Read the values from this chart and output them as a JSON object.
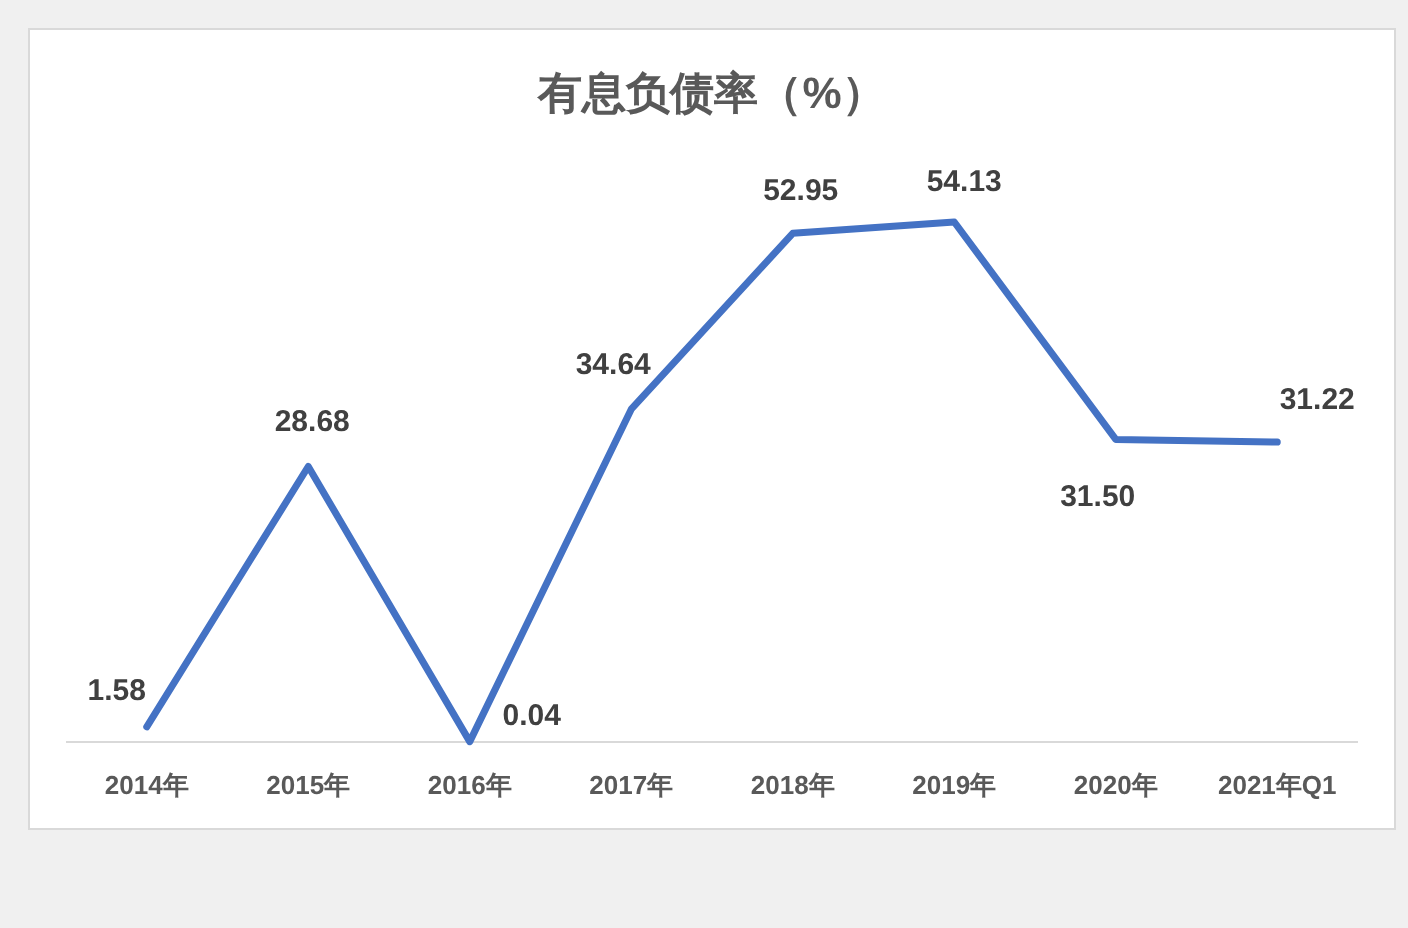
{
  "chart_data": {
    "type": "line",
    "title": "有息负债率（%）",
    "categories": [
      "2014年",
      "2015年",
      "2016年",
      "2017年",
      "2018年",
      "2019年",
      "2020年",
      "2021年Q1"
    ],
    "series": [
      {
        "color": "#4472c4",
        "values": [
          1.58,
          28.68,
          0.04,
          34.64,
          52.95,
          54.13,
          31.5,
          31.22
        ],
        "value_labels": [
          "1.58",
          "28.68",
          "0.04",
          "34.64",
          "52.95",
          "54.13",
          "31.50",
          "31.22"
        ]
      }
    ],
    "tick_labels": "x"
  }
}
